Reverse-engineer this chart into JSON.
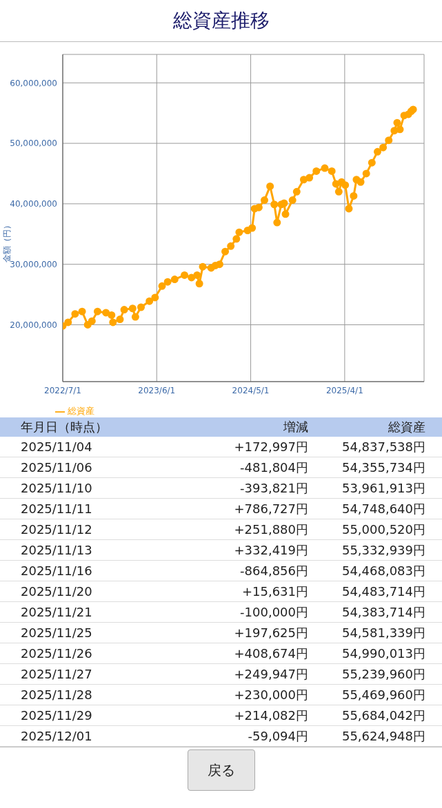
{
  "chart_data": [
    {
      "type": "line",
      "title": "総資産推移",
      "ylabel": "金額（円）",
      "x": [
        "2022-07-01",
        "2022-07-20",
        "2022-08-14",
        "2022-09-08",
        "2022-09-28",
        "2022-10-13",
        "2022-11-02",
        "2022-12-02",
        "2022-12-22",
        "2022-12-27",
        "2023-01-21",
        "2023-02-05",
        "2023-03-07",
        "2023-03-17",
        "2023-04-06",
        "2023-05-06",
        "2023-05-26",
        "2023-06-20",
        "2023-07-10",
        "2023-08-04",
        "2023-09-08",
        "2023-10-03",
        "2023-10-23",
        "2023-10-31",
        "2023-11-12",
        "2023-12-12",
        "2023-12-27",
        "2024-01-11",
        "2024-01-31",
        "2024-02-20",
        "2024-03-11",
        "2024-03-21",
        "2024-04-20",
        "2024-05-06",
        "2024-05-15",
        "2024-05-30",
        "2024-06-19",
        "2024-07-09",
        "2024-07-24",
        "2024-08-03",
        "2024-08-18",
        "2024-08-28",
        "2024-09-02",
        "2024-09-27",
        "2024-10-12",
        "2024-11-06",
        "2024-11-26",
        "2024-12-21",
        "2025-01-20",
        "2025-02-14",
        "2025-03-01",
        "2025-03-11",
        "2025-03-21",
        "2025-04-03",
        "2025-04-16",
        "2025-05-03",
        "2025-05-13",
        "2025-05-28",
        "2025-06-17",
        "2025-07-07",
        "2025-07-27",
        "2025-08-16",
        "2025-09-05",
        "2025-09-25",
        "2025-10-05",
        "2025-10-15",
        "2025-10-30",
        "2025-11-14",
        "2025-11-24",
        "2025-12-01"
      ],
      "series": [
        {
          "name": "総資産",
          "color": "#ffa500",
          "values": [
            19800000,
            20400000,
            21800000,
            22200000,
            20000000,
            20600000,
            22200000,
            22000000,
            21600000,
            20400000,
            20900000,
            22500000,
            22700000,
            21300000,
            22900000,
            23900000,
            24500000,
            26400000,
            27100000,
            27500000,
            28200000,
            27800000,
            28200000,
            26800000,
            29600000,
            29400000,
            29800000,
            30000000,
            32100000,
            33000000,
            34200000,
            35300000,
            35600000,
            36000000,
            39200000,
            39400000,
            40600000,
            42900000,
            39900000,
            36900000,
            39900000,
            40100000,
            38300000,
            40600000,
            42000000,
            44000000,
            44300000,
            45400000,
            45900000,
            45400000,
            43300000,
            42000000,
            43600000,
            43100000,
            39200000,
            41300000,
            44000000,
            43600000,
            45000000,
            46800000,
            48600000,
            49300000,
            50500000,
            52100000,
            53400000,
            52300000,
            54600000,
            54800000,
            55300000,
            55600000
          ]
        }
      ],
      "xlim": [
        "2022-07-01",
        "2026-01-09"
      ],
      "xticks": [
        {
          "value": "2022-07-01",
          "label": "2022/7/1"
        },
        {
          "value": "2023-06-01",
          "label": "2023/6/1"
        },
        {
          "value": "2024-05-01",
          "label": "2024/5/1"
        },
        {
          "value": "2025-04-01",
          "label": "2025/4/1"
        }
      ],
      "ylim": [
        10600000,
        64700000
      ],
      "yticks": [
        {
          "value": 20000000,
          "label": "20,000,000"
        },
        {
          "value": 30000000,
          "label": "30,000,000"
        },
        {
          "value": 40000000,
          "label": "40,000,000"
        },
        {
          "value": 50000000,
          "label": "50,000,000"
        },
        {
          "value": 60000000,
          "label": "60,000,000"
        }
      ],
      "grid": true,
      "legend": "bottom left",
      "marker": "circle"
    },
    {
      "type": "other",
      "annotations": [
        "年月日（時点）",
        "増減",
        "総資産",
        "2025/11/04",
        "+172,997円",
        "54,837,538円",
        "2025/11/06",
        "-481,804円",
        "54,355,734円",
        "2025/11/10",
        "-393,821円",
        "53,961,913円",
        "2025/11/11",
        "+786,727円",
        "54,748,640円",
        "2025/11/12",
        "+251,880円",
        "55,000,520円",
        "2025/11/13",
        "+332,419円",
        "55,332,939円",
        "2025/11/16",
        "-864,856円",
        "54,468,083円",
        "2025/11/20",
        "+15,631円",
        "54,483,714円",
        "2025/11/21",
        "-100,000円",
        "54,383,714円",
        "2025/11/25",
        "+197,625円",
        "54,581,339円",
        "2025/11/26",
        "+408,674円",
        "54,990,013円",
        "2025/11/27",
        "+249,947円",
        "55,239,960円",
        "2025/11/28",
        "+230,000円",
        "55,469,960円",
        "2025/11/29",
        "+214,082円",
        "55,684,042円",
        "2025/12/01",
        "-59,094円",
        "55,624,948円",
        "戻る"
      ]
    }
  ]
}
